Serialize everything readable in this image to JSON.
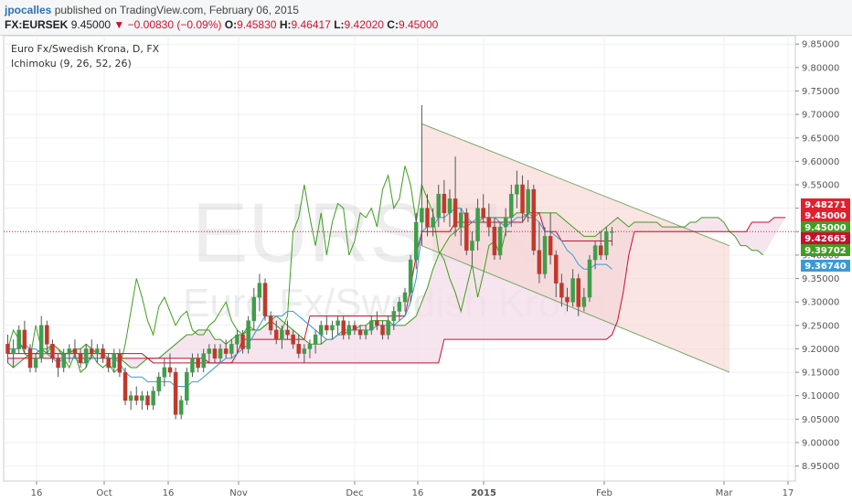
{
  "header": {
    "author": "jpocalles",
    "published": "published on TradingView.com, February 06, 2015",
    "symbol": "FX:EURSEK",
    "last": "9.45000",
    "change": "▼ −0.00830 (−0.09%)",
    "o_label": "O:",
    "o": "9.45830",
    "h_label": "H:",
    "h": "9.46417",
    "l_label": "L:",
    "l": "9.42020",
    "c_label": "C:",
    "c": "9.45000"
  },
  "legend": {
    "title": "Euro Fx/Swedish Krona, D, FX",
    "indicator": "Ichimoku (9, 26, 52, 26)"
  },
  "watermark": {
    "symbol": "EURSEK",
    "name": "Euro Fx/Swedish Krona"
  },
  "colors": {
    "up": "#3f9e4b",
    "down": "#c0392b",
    "tenkan": "#3a9ad9",
    "kijun": "#c8102e",
    "chikou": "#3f9e1f",
    "spanA": "#3f9e1f",
    "spanB": "#c8102e",
    "cloud": "#f3dce8",
    "channel": "#f7d3d0"
  },
  "chart_data": {
    "type": "candlestick",
    "yaxis": {
      "min": 8.93,
      "max": 9.87,
      "ticks": [
        "9.85000",
        "9.80000",
        "9.75000",
        "9.70000",
        "9.65000",
        "9.60000",
        "9.55000",
        "9.50000",
        "9.45000",
        "9.40000",
        "9.35000",
        "9.30000",
        "9.25000",
        "9.20000",
        "9.15000",
        "9.10000",
        "9.05000",
        "9.00000",
        "8.95000"
      ]
    },
    "xaxis": {
      "ticks": [
        "16",
        "Oct",
        "16",
        "Nov",
        "Dec",
        "16",
        "2015",
        "Feb",
        "Mar",
        "17"
      ]
    },
    "price_labels": [
      {
        "value": "9.48271",
        "color": "#e0202f"
      },
      {
        "value": "9.45000",
        "color": "#e0202f"
      },
      {
        "value": "9.45000",
        "color": "#3f9e1f"
      },
      {
        "value": "9.42665",
        "color": "#c8102e"
      },
      {
        "value": "9.39702",
        "color": "#3f9e1f"
      },
      {
        "value": "9.36740",
        "color": "#3a9ad9"
      }
    ],
    "candles": [
      [
        9.21,
        9.23,
        9.17,
        9.19
      ],
      [
        9.19,
        9.22,
        9.16,
        9.2
      ],
      [
        9.2,
        9.25,
        9.19,
        9.24
      ],
      [
        9.24,
        9.26,
        9.19,
        9.2
      ],
      [
        9.2,
        9.21,
        9.15,
        9.16
      ],
      [
        9.16,
        9.19,
        9.15,
        9.18
      ],
      [
        9.18,
        9.27,
        9.17,
        9.25
      ],
      [
        9.25,
        9.26,
        9.19,
        9.21
      ],
      [
        9.21,
        9.22,
        9.17,
        9.18
      ],
      [
        9.18,
        9.19,
        9.14,
        9.16
      ],
      [
        9.16,
        9.2,
        9.15,
        9.19
      ],
      [
        9.19,
        9.21,
        9.17,
        9.2
      ],
      [
        9.2,
        9.22,
        9.18,
        9.19
      ],
      [
        9.19,
        9.2,
        9.16,
        9.17
      ],
      [
        9.17,
        9.21,
        9.16,
        9.2
      ],
      [
        9.2,
        9.22,
        9.18,
        9.19
      ],
      [
        9.19,
        9.21,
        9.17,
        9.2
      ],
      [
        9.2,
        9.21,
        9.17,
        9.18
      ],
      [
        9.18,
        9.19,
        9.15,
        9.16
      ],
      [
        9.16,
        9.2,
        9.15,
        9.19
      ],
      [
        9.19,
        9.2,
        9.14,
        9.15
      ],
      [
        9.15,
        9.16,
        9.08,
        9.09
      ],
      [
        9.09,
        9.11,
        9.07,
        9.1
      ],
      [
        9.1,
        9.12,
        9.08,
        9.09
      ],
      [
        9.09,
        9.11,
        9.07,
        9.1
      ],
      [
        9.1,
        9.11,
        9.07,
        9.08
      ],
      [
        9.08,
        9.12,
        9.07,
        9.11
      ],
      [
        9.11,
        9.15,
        9.1,
        9.14
      ],
      [
        9.14,
        9.18,
        9.12,
        9.16
      ],
      [
        9.16,
        9.19,
        9.14,
        9.15
      ],
      [
        9.15,
        9.16,
        9.05,
        9.06
      ],
      [
        9.06,
        9.1,
        9.05,
        9.09
      ],
      [
        9.09,
        9.16,
        9.08,
        9.15
      ],
      [
        9.15,
        9.19,
        9.14,
        9.18
      ],
      [
        9.18,
        9.19,
        9.15,
        9.16
      ],
      [
        9.16,
        9.2,
        9.15,
        9.19
      ],
      [
        9.19,
        9.21,
        9.17,
        9.2
      ],
      [
        9.2,
        9.21,
        9.17,
        9.18
      ],
      [
        9.18,
        9.21,
        9.17,
        9.2
      ],
      [
        9.2,
        9.22,
        9.18,
        9.19
      ],
      [
        9.19,
        9.22,
        9.18,
        9.21
      ],
      [
        9.21,
        9.24,
        9.19,
        9.23
      ],
      [
        9.23,
        9.24,
        9.19,
        9.2
      ],
      [
        9.2,
        9.27,
        9.19,
        9.26
      ],
      [
        9.26,
        9.33,
        9.24,
        9.31
      ],
      [
        9.31,
        9.36,
        9.28,
        9.34
      ],
      [
        9.34,
        9.35,
        9.26,
        9.27
      ],
      [
        9.27,
        9.28,
        9.23,
        9.24
      ],
      [
        9.24,
        9.26,
        9.21,
        9.22
      ],
      [
        9.22,
        9.25,
        9.2,
        9.24
      ],
      [
        9.24,
        9.26,
        9.22,
        9.23
      ],
      [
        9.23,
        9.24,
        9.2,
        9.21
      ],
      [
        9.21,
        9.23,
        9.18,
        9.19
      ],
      [
        9.19,
        9.21,
        9.17,
        9.2
      ],
      [
        9.2,
        9.22,
        9.18,
        9.21
      ],
      [
        9.21,
        9.24,
        9.19,
        9.23
      ],
      [
        9.23,
        9.26,
        9.21,
        9.25
      ],
      [
        9.25,
        9.27,
        9.23,
        9.24
      ],
      [
        9.24,
        9.26,
        9.22,
        9.25
      ],
      [
        9.25,
        9.27,
        9.23,
        9.26
      ],
      [
        9.26,
        9.27,
        9.22,
        9.23
      ],
      [
        9.23,
        9.26,
        9.22,
        9.25
      ],
      [
        9.25,
        9.26,
        9.23,
        9.24
      ],
      [
        9.24,
        9.25,
        9.22,
        9.23
      ],
      [
        9.23,
        9.25,
        9.22,
        9.24
      ],
      [
        9.24,
        9.27,
        9.23,
        9.26
      ],
      [
        9.26,
        9.28,
        9.24,
        9.25
      ],
      [
        9.25,
        9.26,
        9.22,
        9.23
      ],
      [
        9.23,
        9.27,
        9.22,
        9.26
      ],
      [
        9.26,
        9.29,
        9.24,
        9.28
      ],
      [
        9.28,
        9.31,
        9.26,
        9.3
      ],
      [
        9.3,
        9.33,
        9.28,
        9.32
      ],
      [
        9.32,
        9.4,
        9.3,
        9.39
      ],
      [
        9.39,
        9.49,
        9.37,
        9.47
      ],
      [
        9.47,
        9.72,
        9.42,
        9.5
      ],
      [
        9.5,
        9.53,
        9.44,
        9.46
      ],
      [
        9.46,
        9.5,
        9.44,
        9.48
      ],
      [
        9.48,
        9.55,
        9.46,
        9.53
      ],
      [
        9.53,
        9.56,
        9.47,
        9.49
      ],
      [
        9.49,
        9.54,
        9.46,
        9.52
      ],
      [
        9.52,
        9.61,
        9.44,
        9.46
      ],
      [
        9.46,
        9.5,
        9.42,
        9.49
      ],
      [
        9.49,
        9.5,
        9.4,
        9.41
      ],
      [
        9.41,
        9.45,
        9.38,
        9.43
      ],
      [
        9.43,
        9.52,
        9.41,
        9.5
      ],
      [
        9.5,
        9.53,
        9.47,
        9.48
      ],
      [
        9.48,
        9.51,
        9.44,
        9.46
      ],
      [
        9.46,
        9.48,
        9.39,
        9.4
      ],
      [
        9.4,
        9.47,
        9.39,
        9.46
      ],
      [
        9.46,
        9.5,
        9.44,
        9.48
      ],
      [
        9.48,
        9.55,
        9.46,
        9.53
      ],
      [
        9.53,
        9.58,
        9.5,
        9.55
      ],
      [
        9.55,
        9.57,
        9.47,
        9.49
      ],
      [
        9.49,
        9.56,
        9.47,
        9.54
      ],
      [
        9.54,
        9.55,
        9.4,
        9.41
      ],
      [
        9.41,
        9.47,
        9.34,
        9.36
      ],
      [
        9.36,
        9.46,
        9.35,
        9.44
      ],
      [
        9.44,
        9.49,
        9.38,
        9.4
      ],
      [
        9.4,
        9.41,
        9.31,
        9.34
      ],
      [
        9.34,
        9.36,
        9.29,
        9.31
      ],
      [
        9.31,
        9.33,
        9.28,
        9.3
      ],
      [
        9.3,
        9.37,
        9.29,
        9.35
      ],
      [
        9.35,
        9.36,
        9.27,
        9.29
      ],
      [
        9.29,
        9.33,
        9.28,
        9.31
      ],
      [
        9.31,
        9.4,
        9.3,
        9.39
      ],
      [
        9.39,
        9.43,
        9.37,
        9.42
      ],
      [
        9.42,
        9.45,
        9.39,
        9.4
      ],
      [
        9.4,
        9.46,
        9.39,
        9.45
      ],
      [
        9.45,
        9.46,
        9.42,
        9.45
      ]
    ],
    "tenkan": [
      9.2,
      9.2,
      9.2,
      9.21,
      9.2,
      9.2,
      9.19,
      9.19,
      9.18,
      9.17,
      9.18,
      9.18,
      9.18,
      9.17,
      9.17,
      9.18,
      9.18,
      9.18,
      9.18,
      9.18,
      9.17,
      9.15,
      9.14,
      9.14,
      9.14,
      9.13,
      9.13,
      9.13,
      9.13,
      9.13,
      9.12,
      9.12,
      9.12,
      9.13,
      9.13,
      9.14,
      9.15,
      9.16,
      9.17,
      9.18,
      9.18,
      9.19,
      9.2,
      9.21,
      9.23,
      9.25,
      9.27,
      9.27,
      9.27,
      9.27,
      9.28,
      9.28,
      9.27,
      9.26,
      9.25,
      9.24,
      9.23,
      9.22,
      9.22,
      9.23,
      9.24,
      9.24,
      9.24,
      9.24,
      9.24,
      9.24,
      9.25,
      9.25,
      9.25,
      9.25,
      9.26,
      9.27,
      9.3,
      9.35,
      9.45,
      9.46,
      9.46,
      9.48,
      9.48,
      9.49,
      9.5,
      9.5,
      9.48,
      9.47,
      9.48,
      9.48,
      9.48,
      9.48,
      9.47,
      9.46,
      9.47,
      9.48,
      9.48,
      9.49,
      9.48,
      9.47,
      9.45,
      9.45,
      9.44,
      9.43,
      9.41,
      9.4,
      9.38,
      9.37,
      9.37,
      9.38,
      9.38,
      9.38,
      9.37
    ],
    "kijun": [
      9.19,
      9.19,
      9.19,
      9.19,
      9.19,
      9.19,
      9.19,
      9.19,
      9.19,
      9.19,
      9.19,
      9.19,
      9.19,
      9.19,
      9.19,
      9.19,
      9.19,
      9.19,
      9.19,
      9.19,
      9.19,
      9.19,
      9.19,
      9.19,
      9.19,
      9.18,
      9.17,
      9.17,
      9.17,
      9.17,
      9.17,
      9.17,
      9.17,
      9.17,
      9.17,
      9.17,
      9.17,
      9.17,
      9.17,
      9.17,
      9.17,
      9.19,
      9.22,
      9.22,
      9.22,
      9.22,
      9.22,
      9.22,
      9.22,
      9.22,
      9.22,
      9.22,
      9.22,
      9.22,
      9.27,
      9.27,
      9.27,
      9.27,
      9.27,
      9.27,
      9.27,
      9.27,
      9.27,
      9.27,
      9.27,
      9.27,
      9.27,
      9.27,
      9.27,
      9.27,
      9.27,
      9.27,
      9.33,
      9.4,
      9.45,
      9.45,
      9.45,
      9.45,
      9.45,
      9.45,
      9.47,
      9.47,
      9.47,
      9.47,
      9.47,
      9.47,
      9.47,
      9.47,
      9.47,
      9.47,
      9.47,
      9.47,
      9.47,
      9.49,
      9.49,
      9.49,
      9.45,
      9.45,
      9.45,
      9.43,
      9.43,
      9.43,
      9.43,
      9.43,
      9.43,
      9.43,
      9.43,
      9.43,
      9.43
    ],
    "chikou": [
      9.2,
      9.24,
      9.22,
      9.19,
      9.18,
      9.25,
      9.2,
      9.19,
      9.21,
      9.2,
      9.18,
      9.16,
      9.19,
      9.15,
      9.16,
      9.19,
      9.17,
      9.16,
      9.17,
      9.15,
      9.16,
      9.21,
      9.28,
      9.35,
      9.31,
      9.26,
      9.23,
      9.29,
      9.31,
      9.28,
      9.25,
      9.27,
      9.28,
      9.24,
      9.23,
      9.23,
      9.25,
      9.26,
      9.28,
      9.3,
      9.26,
      9.24,
      9.23,
      9.25,
      9.24,
      9.24,
      9.25,
      9.26,
      9.25,
      9.24,
      9.27,
      9.45,
      9.48,
      9.55,
      9.48,
      9.42,
      9.49,
      9.4,
      9.47,
      9.51,
      9.5,
      9.4,
      9.43,
      9.49,
      9.48,
      9.5,
      9.46,
      9.54,
      9.57,
      9.5,
      9.52,
      9.59,
      9.55,
      9.47,
      9.55,
      9.52,
      9.49,
      9.41,
      9.39,
      9.35,
      9.32,
      9.28,
      9.33,
      9.38,
      9.31,
      9.36,
      9.42,
      9.43,
      9.4,
      9.45,
      9.45
    ],
    "spanA": [
      9.17,
      9.16,
      9.17,
      9.18,
      9.19,
      9.19,
      9.2,
      9.2,
      9.21,
      9.2,
      9.19,
      9.19,
      9.2,
      9.2,
      9.21,
      9.2,
      9.19,
      9.19,
      9.18,
      9.18,
      9.18,
      9.17,
      9.16,
      9.16,
      9.17,
      9.18,
      9.18,
      9.18,
      9.19,
      9.2,
      9.21,
      9.22,
      9.23,
      9.23,
      9.24,
      9.24,
      9.24,
      9.22,
      9.22,
      9.21,
      9.22,
      9.23,
      9.23,
      9.24,
      9.24,
      9.24,
      9.25,
      9.26,
      9.27,
      9.26,
      9.25,
      9.24,
      9.23,
      9.22,
      9.21,
      9.21,
      9.21,
      9.22,
      9.22,
      9.23,
      9.23,
      9.24,
      9.24,
      9.25,
      9.25,
      9.26,
      9.26,
      9.26,
      9.26,
      9.25,
      9.25,
      9.25,
      9.26,
      9.27,
      9.3,
      9.33,
      9.37,
      9.4,
      9.42,
      9.44,
      9.45,
      9.46,
      9.46,
      9.47,
      9.47,
      9.48,
      9.48,
      9.48,
      9.48,
      9.48,
      9.48,
      9.49,
      9.49,
      9.48,
      9.48,
      9.49,
      9.49,
      9.49,
      9.49,
      9.48,
      9.47,
      9.46,
      9.45,
      9.44,
      9.44,
      9.44,
      9.45,
      9.46,
      9.47,
      9.48,
      9.47,
      9.46,
      9.47,
      9.47,
      9.47,
      9.47,
      9.47,
      9.46,
      9.46,
      9.46,
      9.46,
      9.46,
      9.47,
      9.47,
      9.48,
      9.48,
      9.48,
      9.48,
      9.47,
      9.45,
      9.44,
      9.42,
      9.42,
      9.41,
      9.41,
      9.4
    ],
    "spanB": [
      9.18,
      9.18,
      9.18,
      9.18,
      9.18,
      9.18,
      9.18,
      9.18,
      9.18,
      9.18,
      9.18,
      9.18,
      9.18,
      9.18,
      9.18,
      9.18,
      9.18,
      9.18,
      9.18,
      9.18,
      9.18,
      9.18,
      9.18,
      9.18,
      9.18,
      9.18,
      9.18,
      9.18,
      9.18,
      9.18,
      9.18,
      9.18,
      9.18,
      9.18,
      9.18,
      9.18,
      9.17,
      9.17,
      9.17,
      9.17,
      9.17,
      9.17,
      9.17,
      9.17,
      9.17,
      9.17,
      9.17,
      9.17,
      9.17,
      9.17,
      9.17,
      9.17,
      9.17,
      9.17,
      9.17,
      9.17,
      9.17,
      9.17,
      9.17,
      9.17,
      9.17,
      9.17,
      9.17,
      9.17,
      9.17,
      9.17,
      9.17,
      9.17,
      9.17,
      9.17,
      9.17,
      9.17,
      9.17,
      9.17,
      9.17,
      9.17,
      9.17,
      9.17,
      9.22,
      9.22,
      9.22,
      9.22,
      9.22,
      9.22,
      9.22,
      9.22,
      9.22,
      9.22,
      9.22,
      9.22,
      9.22,
      9.22,
      9.22,
      9.22,
      9.22,
      9.22,
      9.22,
      9.22,
      9.22,
      9.22,
      9.22,
      9.22,
      9.22,
      9.22,
      9.22,
      9.22,
      9.22,
      9.22,
      9.23,
      9.26,
      9.32,
      9.4,
      9.45,
      9.45,
      9.45,
      9.45,
      9.45,
      9.45,
      9.45,
      9.45,
      9.45,
      9.45,
      9.45,
      9.45,
      9.45,
      9.45,
      9.45,
      9.45,
      9.45,
      9.45,
      9.45,
      9.45,
      9.45,
      9.47,
      9.47,
      9.47,
      9.47,
      9.48,
      9.48,
      9.48
    ],
    "channel": {
      "upper": [
        [
          74,
          9.68
        ],
        [
          129,
          9.42
        ]
      ],
      "lower_offset": -0.27,
      "start_lower": 9.42
    },
    "hline": 9.45
  }
}
